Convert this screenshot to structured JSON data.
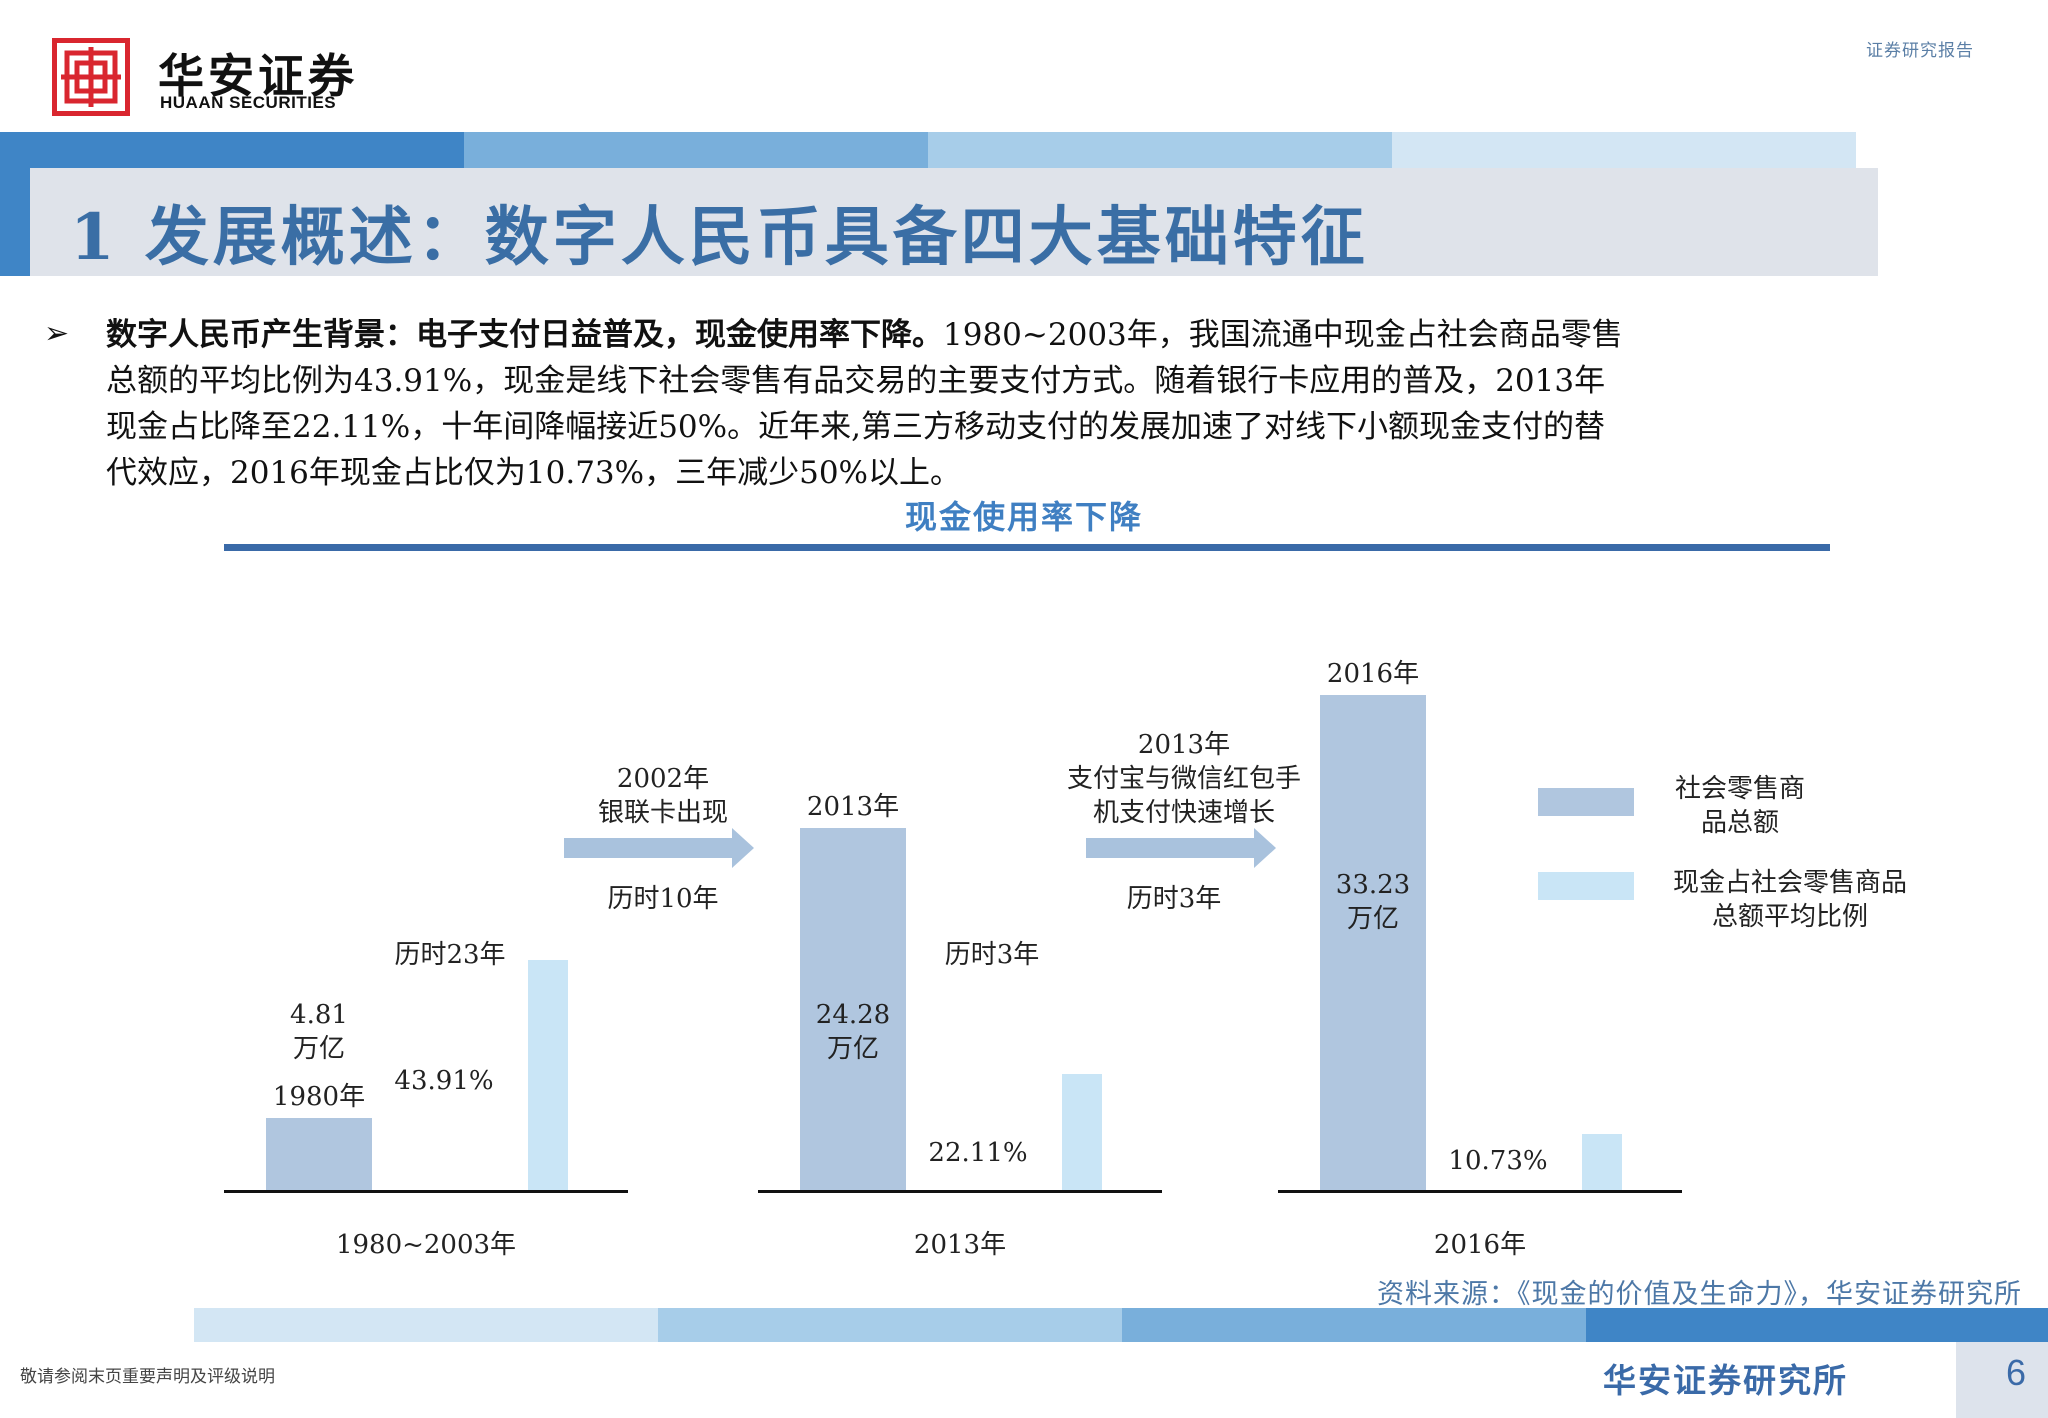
{
  "header": {
    "logo_name": "华安证券",
    "logo_en": "HUAAN SECURITIES",
    "doc_type": "证券研究报告"
  },
  "title": "1 发展概述：数字人民币具备四大基础特征",
  "body": {
    "bullet_lead": "数字人民币产生背景：电子支付日益普及，现金使用率下降。",
    "line1_rest": "1980~2003年，我国流通中现金占社会商品零售",
    "line2": "总额的平均比例为43.91%，现金是线下社会零售有品交易的主要支付方式。随着银行卡应用的普及，2013年",
    "line3": "现金占比降至22.11%，十年间降幅接近50%。近年来,第三方移动支付的发展加速了对线下小额现金支付的替",
    "line4": "代效应，2016年现金占比仅为10.73%，三年减少50%以上。"
  },
  "chart_data": {
    "type": "bar",
    "title": "现金使用率下降",
    "categories": [
      "1980~2003年",
      "2013年",
      "2016年"
    ],
    "bar_year_labels": [
      "1980年",
      "2013年",
      "2016年"
    ],
    "series": [
      {
        "name": "社会零售商品总额",
        "values": [
          4.81,
          24.28,
          33.23
        ],
        "labels": [
          "4.81\n万亿",
          "24.28\n万亿",
          "33.23\n万亿"
        ],
        "color": "#b0c6df"
      },
      {
        "name": "现金占社会零售商品总额平均比例",
        "values": [
          43.91,
          22.11,
          10.73
        ],
        "labels": [
          "43.91%",
          "22.11%",
          "10.73%"
        ],
        "color": "#c9e5f6"
      }
    ],
    "durations": [
      "历时23年",
      "历时3年"
    ],
    "transitions": [
      {
        "text": "2002年\n银联卡出现",
        "duration": "历时10年"
      },
      {
        "text": "2013年\n支付宝与微信红包手\n机支付快速增长",
        "duration": "历时3年"
      }
    ],
    "legend": [
      "社会零售商\n品总额",
      "现金占社会零售商品\n总额平均比例"
    ],
    "legend_position": "right"
  },
  "source": "资料来源：《现金的价值及生命力》，华安证券研究所",
  "footer": {
    "disclaimer": "敬请参阅末页重要声明及评级说明",
    "institute": "华安证券研究所",
    "page": "6"
  },
  "colors": {
    "brand_red": "#d9262f",
    "title_blue": "#3a6ea5",
    "bar_dark": "#b0c6df",
    "bar_light": "#c9e5f6"
  }
}
